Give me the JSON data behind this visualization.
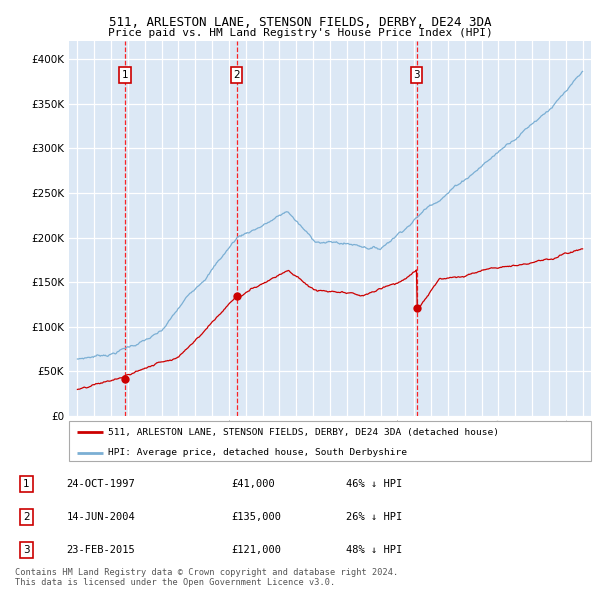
{
  "title1": "511, ARLESTON LANE, STENSON FIELDS, DERBY, DE24 3DA",
  "title2": "Price paid vs. HM Land Registry's House Price Index (HPI)",
  "plot_bg": "#dce8f5",
  "grid_color": "#ffffff",
  "sale_color": "#cc0000",
  "hpi_color": "#7bafd4",
  "sales": [
    {
      "date": 1997.81,
      "price": 41000,
      "label": "1"
    },
    {
      "date": 2004.45,
      "price": 135000,
      "label": "2"
    },
    {
      "date": 2015.14,
      "price": 121000,
      "label": "3"
    }
  ],
  "legend_sale": "511, ARLESTON LANE, STENSON FIELDS, DERBY, DE24 3DA (detached house)",
  "legend_hpi": "HPI: Average price, detached house, South Derbyshire",
  "table": [
    {
      "num": "1",
      "date": "24-OCT-1997",
      "price": "£41,000",
      "note": "46% ↓ HPI"
    },
    {
      "num": "2",
      "date": "14-JUN-2004",
      "price": "£135,000",
      "note": "26% ↓ HPI"
    },
    {
      "num": "3",
      "date": "23-FEB-2015",
      "price": "£121,000",
      "note": "48% ↓ HPI"
    }
  ],
  "footer1": "Contains HM Land Registry data © Crown copyright and database right 2024.",
  "footer2": "This data is licensed under the Open Government Licence v3.0.",
  "ylim": [
    0,
    420000
  ],
  "xlim": [
    1994.5,
    2025.5
  ]
}
